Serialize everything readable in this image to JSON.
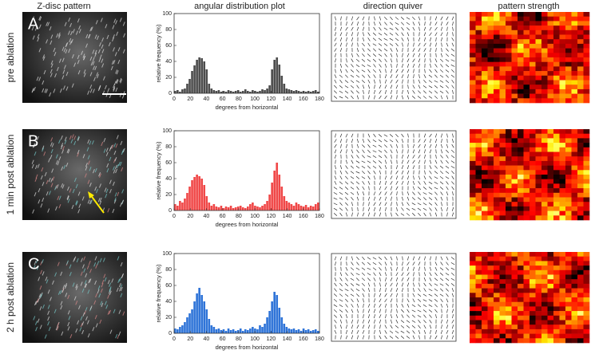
{
  "column_headers": [
    "Z-disc pattern",
    "angular distribution plot",
    "direction quiver",
    "pattern strength"
  ],
  "rows": [
    {
      "letter": "A",
      "label": "pre ablation"
    },
    {
      "letter": "B",
      "label": "1 min post ablation"
    },
    {
      "letter": "C",
      "label": "2 h post ablation"
    }
  ],
  "chart_data": [
    {
      "type": "histogram",
      "xlabel": "degrees from horizontal",
      "ylabel": "relative frequency (%)",
      "color": "#4d4d4d",
      "bins": [
        0,
        3,
        6,
        9,
        12,
        15,
        18,
        21,
        24,
        27,
        30,
        33,
        36,
        39,
        42,
        45,
        48,
        51,
        54,
        57,
        60,
        63,
        66,
        69,
        72,
        75,
        78,
        81,
        84,
        87,
        90,
        93,
        96,
        99,
        102,
        105,
        108,
        111,
        114,
        117,
        120,
        123,
        126,
        129,
        132,
        135,
        138,
        141,
        144,
        147,
        150,
        153,
        156,
        159,
        162,
        165,
        168,
        171,
        174,
        177,
        180
      ],
      "values": [
        3,
        4,
        2,
        5,
        6,
        12,
        18,
        28,
        35,
        42,
        45,
        44,
        40,
        30,
        12,
        6,
        4,
        3,
        4,
        2,
        3,
        2,
        4,
        3,
        2,
        3,
        4,
        2,
        3,
        5,
        3,
        2,
        4,
        3,
        2,
        3,
        5,
        4,
        6,
        10,
        30,
        42,
        45,
        36,
        22,
        12,
        6,
        5,
        4,
        3,
        4,
        3,
        2,
        3,
        2,
        3,
        2,
        3,
        4,
        2
      ],
      "xlim": [
        0,
        180
      ],
      "ylim": [
        0,
        100
      ],
      "xticks": [
        0,
        20,
        40,
        60,
        80,
        100,
        120,
        140,
        160,
        180
      ],
      "yticks": [
        0,
        20,
        40,
        60,
        80,
        100
      ]
    },
    {
      "type": "histogram",
      "xlabel": "degrees from horizontal",
      "ylabel": "relative frequency (%)",
      "color": "#f04848",
      "bins": [
        0,
        3,
        6,
        9,
        12,
        15,
        18,
        21,
        24,
        27,
        30,
        33,
        36,
        39,
        42,
        45,
        48,
        51,
        54,
        57,
        60,
        63,
        66,
        69,
        72,
        75,
        78,
        81,
        84,
        87,
        90,
        93,
        96,
        99,
        102,
        105,
        108,
        111,
        114,
        117,
        120,
        123,
        126,
        129,
        132,
        135,
        138,
        141,
        144,
        147,
        150,
        153,
        156,
        159,
        162,
        165,
        168,
        171,
        174,
        177,
        180
      ],
      "values": [
        8,
        6,
        12,
        10,
        15,
        22,
        30,
        38,
        42,
        45,
        43,
        40,
        32,
        18,
        10,
        6,
        8,
        5,
        4,
        6,
        3,
        5,
        4,
        6,
        3,
        4,
        5,
        6,
        4,
        3,
        5,
        8,
        10,
        6,
        5,
        4,
        6,
        8,
        12,
        20,
        35,
        50,
        60,
        45,
        30,
        18,
        12,
        10,
        8,
        6,
        10,
        8,
        6,
        5,
        7,
        4,
        6,
        5,
        8,
        10
      ],
      "xlim": [
        0,
        180
      ],
      "ylim": [
        0,
        100
      ],
      "xticks": [
        0,
        20,
        40,
        60,
        80,
        100,
        120,
        140,
        160,
        180
      ],
      "yticks": [
        0,
        20,
        40,
        60,
        80,
        100
      ]
    },
    {
      "type": "histogram",
      "xlabel": "degrees from horizontal",
      "ylabel": "relative frequency (%)",
      "color": "#2f74d8",
      "bins": [
        0,
        3,
        6,
        9,
        12,
        15,
        18,
        21,
        24,
        27,
        30,
        33,
        36,
        39,
        42,
        45,
        48,
        51,
        54,
        57,
        60,
        63,
        66,
        69,
        72,
        75,
        78,
        81,
        84,
        87,
        90,
        93,
        96,
        99,
        102,
        105,
        108,
        111,
        114,
        117,
        120,
        123,
        126,
        129,
        132,
        135,
        138,
        141,
        144,
        147,
        150,
        153,
        156,
        159,
        162,
        165,
        168,
        171,
        174,
        177,
        180
      ],
      "values": [
        6,
        5,
        8,
        10,
        14,
        20,
        25,
        30,
        40,
        50,
        57,
        48,
        40,
        30,
        18,
        10,
        8,
        5,
        6,
        4,
        5,
        3,
        6,
        4,
        5,
        3,
        4,
        6,
        3,
        5,
        4,
        6,
        8,
        6,
        5,
        10,
        8,
        12,
        20,
        28,
        40,
        52,
        48,
        32,
        20,
        12,
        8,
        6,
        5,
        6,
        4,
        5,
        3,
        6,
        4,
        5,
        3,
        4,
        5,
        3
      ],
      "xlim": [
        0,
        180
      ],
      "ylim": [
        0,
        100
      ],
      "xticks": [
        0,
        20,
        40,
        60,
        80,
        100,
        120,
        140,
        160,
        180
      ],
      "yticks": [
        0,
        20,
        40,
        60,
        80,
        100
      ]
    }
  ]
}
